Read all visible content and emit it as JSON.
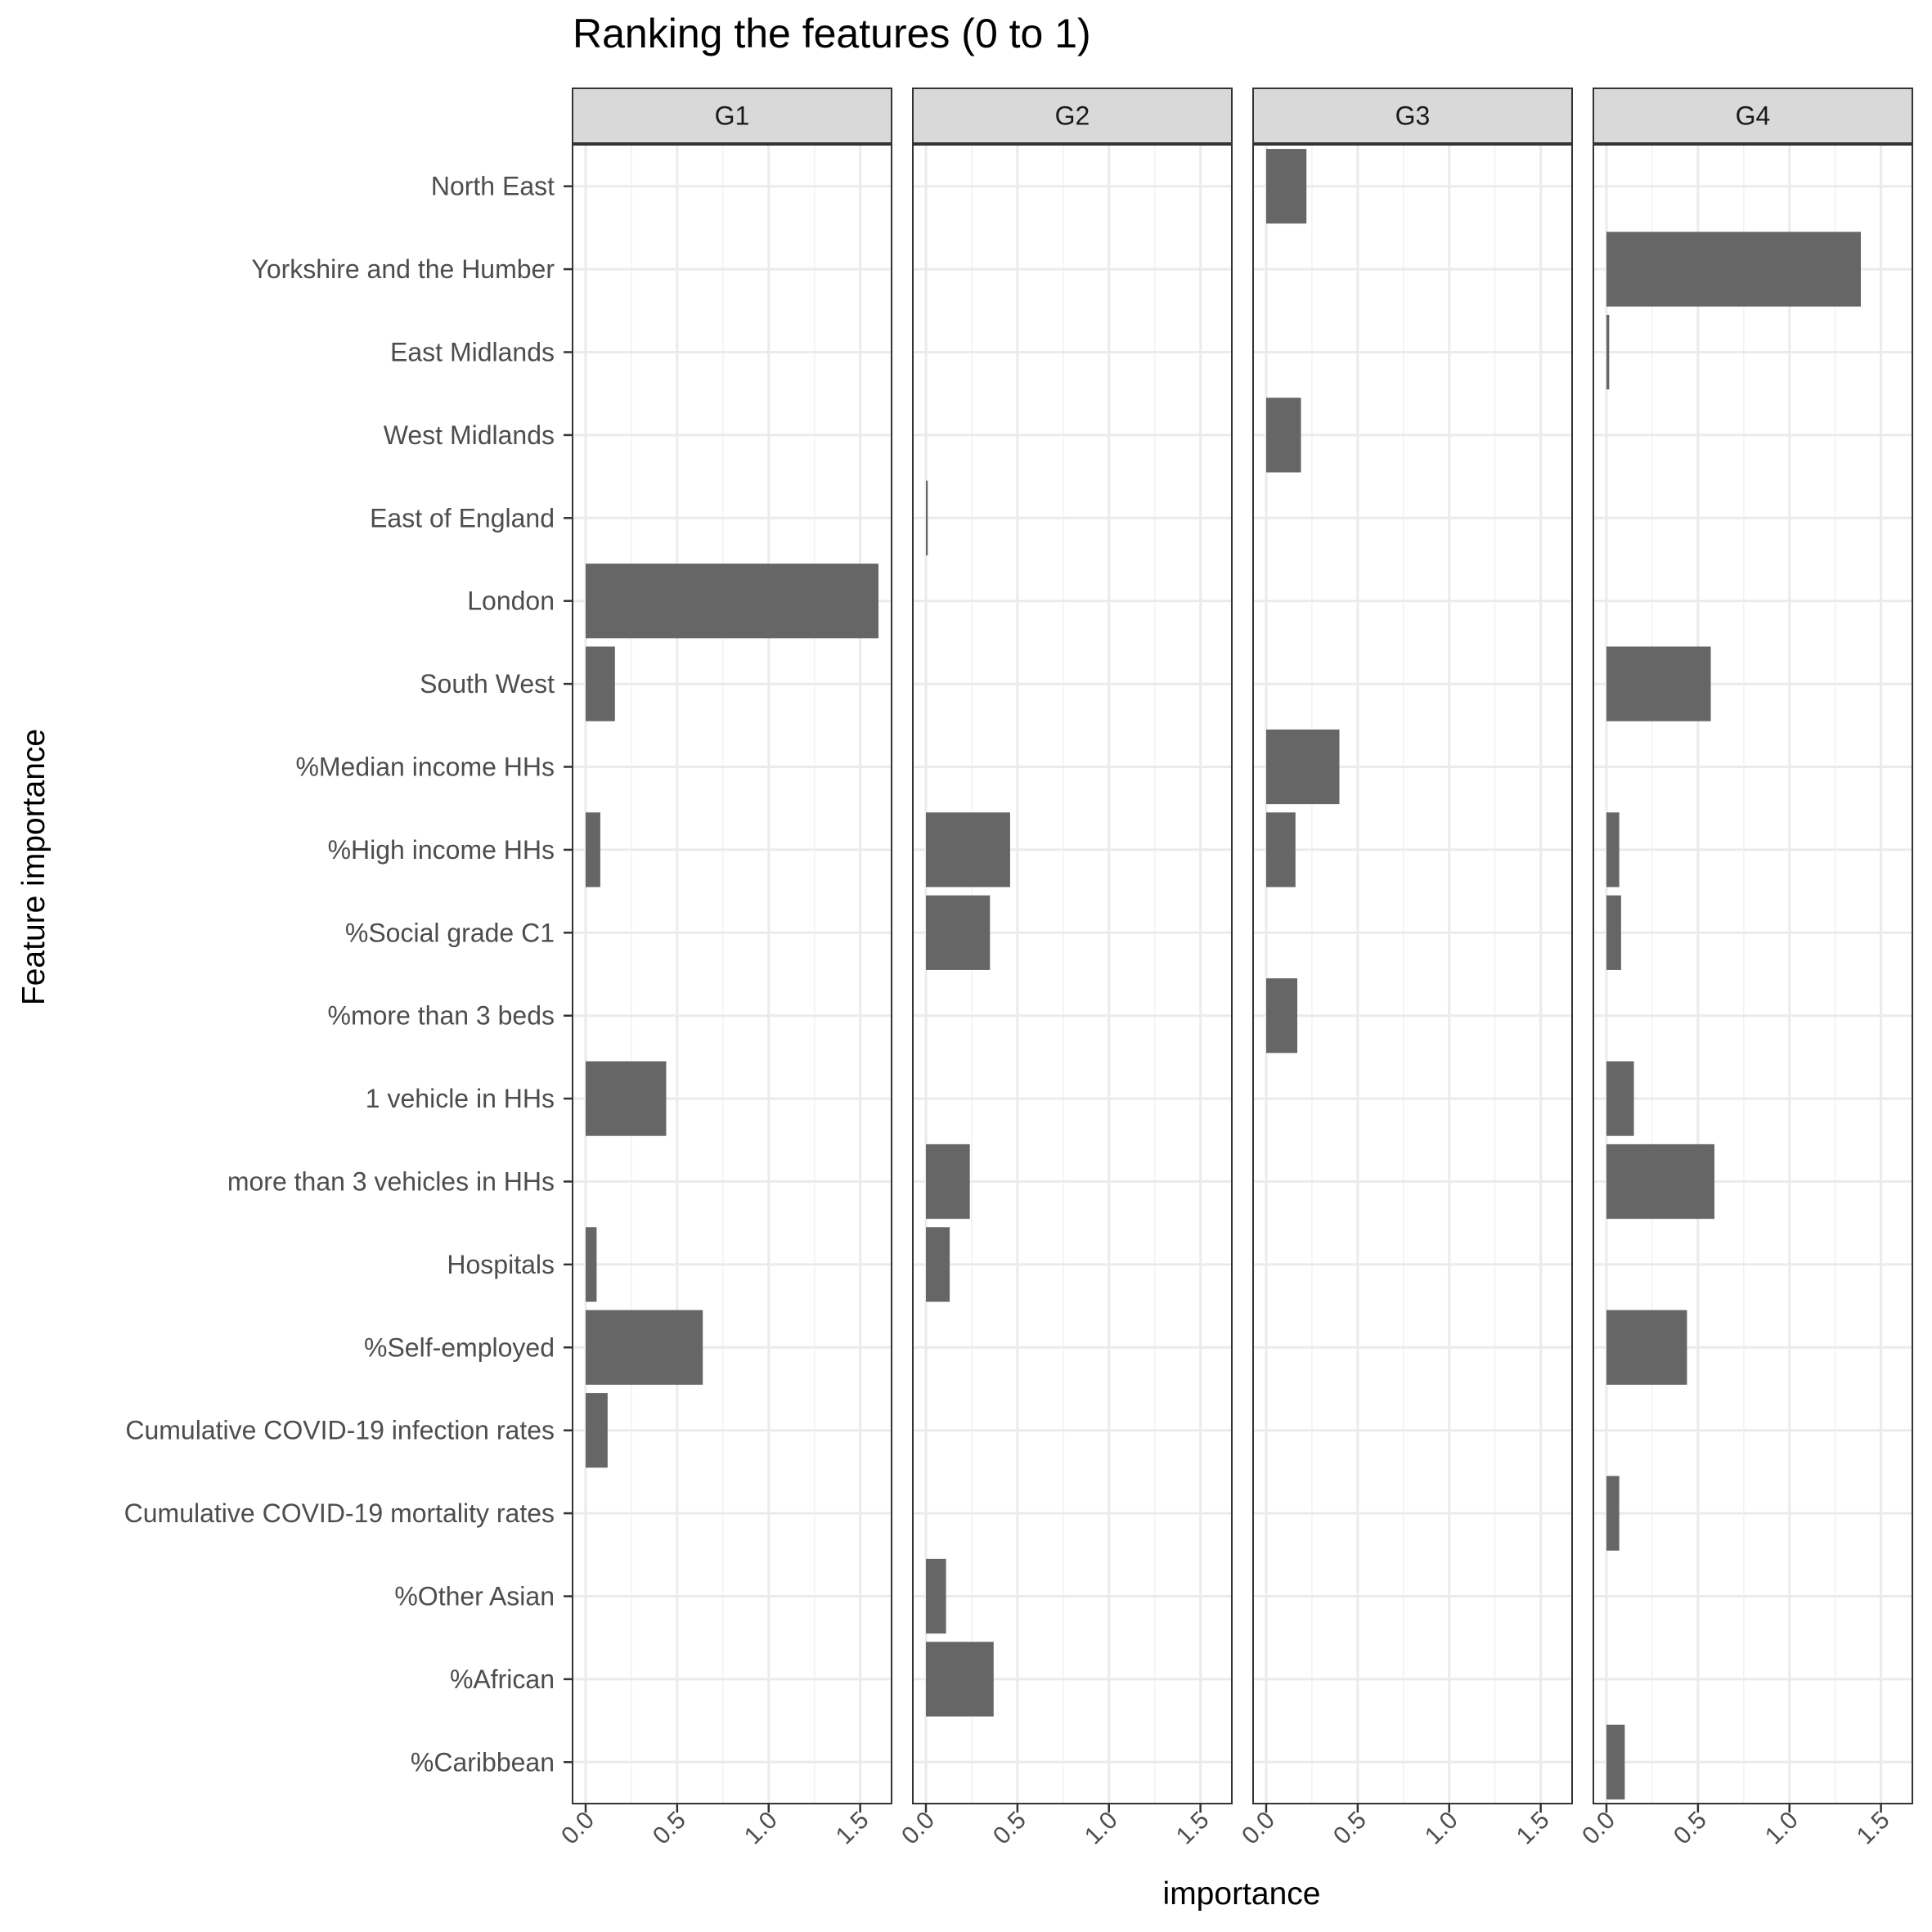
{
  "chart_data": {
    "type": "bar",
    "orientation": "horizontal",
    "title": "Ranking the features (0 to 1)",
    "xlabel": "importance",
    "ylabel": "Feature importance",
    "xlim": [
      0,
      1.6
    ],
    "xticks": [
      0,
      0.5,
      1,
      1.5
    ],
    "xtick_labels": [
      "0.0",
      "0.5",
      "1.0",
      "1.5"
    ],
    "grid": true,
    "bar_color": "#666666",
    "features": [
      "North East",
      "Yorkshire and the Humber",
      "East Midlands",
      "West Midlands",
      "East of England",
      "London",
      "South West",
      "%Median income HHs",
      "%High income HHs",
      "%Social grade C1",
      "%more than 3 beds",
      "1 vehicle in HHs",
      "more than 3 vehicles in HHs",
      "Hospitals",
      "%Self-employed",
      "Cumulative COVID-19 infection rates",
      "Cumulative COVID-19 mortality rates",
      "%Other Asian",
      "%African",
      "%Caribbean"
    ],
    "panels": [
      {
        "name": "G1",
        "values": [
          0,
          0,
          0,
          0,
          0,
          1.6,
          0.16,
          0,
          0.08,
          0,
          0,
          0.44,
          0,
          0.06,
          0.64,
          0.12,
          0,
          0,
          0,
          0
        ]
      },
      {
        "name": "G2",
        "values": [
          0,
          0,
          0,
          0,
          0.01,
          0,
          0,
          0,
          0.46,
          0.35,
          0,
          0,
          0.24,
          0.13,
          0,
          0,
          0,
          0.11,
          0.37,
          0
        ]
      },
      {
        "name": "G3",
        "values": [
          0.22,
          0,
          0,
          0.19,
          0,
          0,
          0,
          0.4,
          0.16,
          0,
          0.17,
          0,
          0,
          0,
          0,
          0,
          0,
          0,
          0,
          0
        ]
      },
      {
        "name": "G4",
        "values": [
          0,
          1.39,
          0.015,
          0,
          0,
          0,
          0.57,
          0,
          0.07,
          0.08,
          0,
          0.15,
          0.59,
          0,
          0.44,
          0,
          0.07,
          0,
          0,
          0.1
        ]
      }
    ]
  }
}
